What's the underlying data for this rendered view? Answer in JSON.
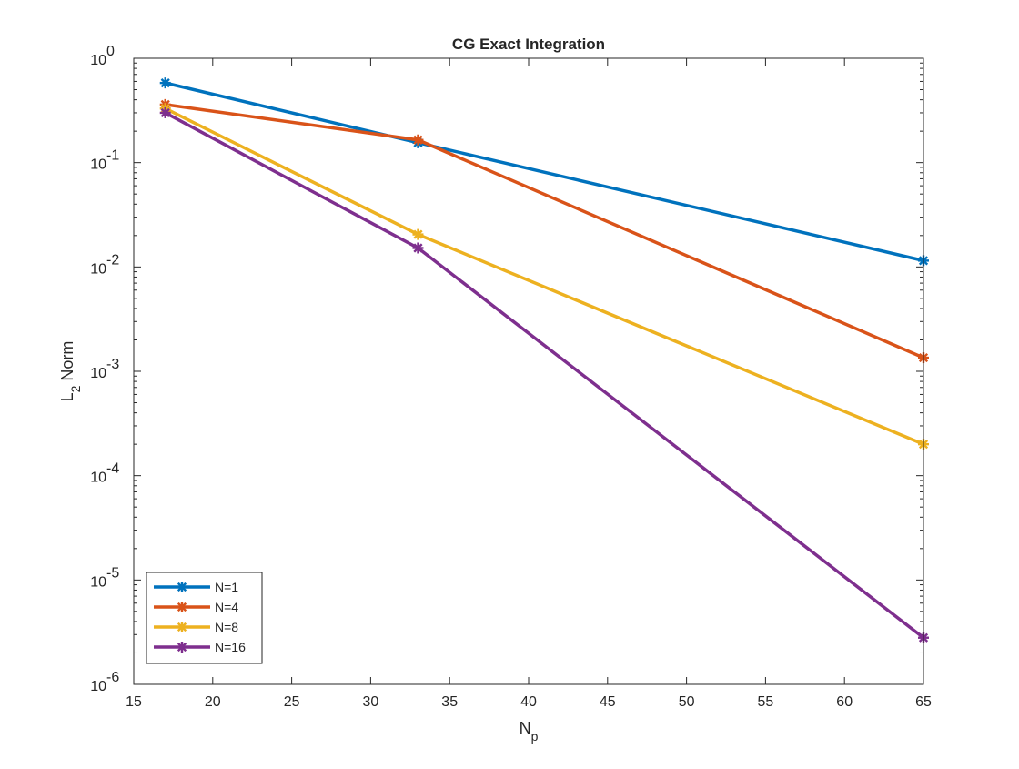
{
  "chart_data": {
    "type": "line",
    "title": "CG Exact Integration",
    "xlabel": {
      "main": "N",
      "sub": "p"
    },
    "ylabel": {
      "main": "L",
      "sub": "2",
      "rest": " Norm"
    },
    "xscale": "linear",
    "yscale": "log",
    "xlim": [
      15,
      65
    ],
    "ylim": [
      1e-06,
      1
    ],
    "x_ticks": [
      15,
      20,
      25,
      30,
      35,
      40,
      45,
      50,
      55,
      60,
      65
    ],
    "y_ticks": [
      {
        "value": 1,
        "base": "10",
        "exp": "0"
      },
      {
        "value": 0.1,
        "base": "10",
        "exp": "-1"
      },
      {
        "value": 0.01,
        "base": "10",
        "exp": "-2"
      },
      {
        "value": 0.001,
        "base": "10",
        "exp": "-3"
      },
      {
        "value": 0.0001,
        "base": "10",
        "exp": "-4"
      },
      {
        "value": 1e-05,
        "base": "10",
        "exp": "-5"
      },
      {
        "value": 1e-06,
        "base": "10",
        "exp": "-6"
      }
    ],
    "x": [
      17,
      33,
      65
    ],
    "series": [
      {
        "name": "N=1",
        "color": "#0072BD",
        "values": [
          0.58,
          0.155,
          0.0115
        ]
      },
      {
        "name": "N=4",
        "color": "#D95319",
        "values": [
          0.36,
          0.165,
          0.00135
        ]
      },
      {
        "name": "N=8",
        "color": "#EDB120",
        "values": [
          0.33,
          0.0205,
          0.0002
        ]
      },
      {
        "name": "N=16",
        "color": "#7E2F8E",
        "values": [
          0.3,
          0.0152,
          2.8e-06
        ]
      }
    ],
    "marker": "asterisk",
    "grid": false,
    "legend_position": "bottom-left"
  }
}
